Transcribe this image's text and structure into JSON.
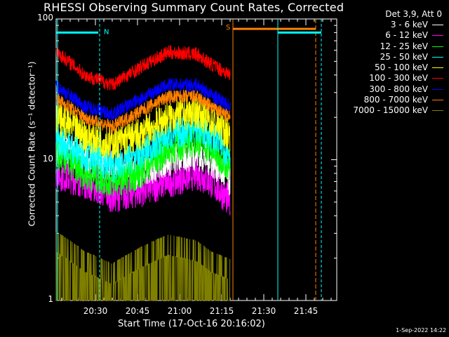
{
  "chart_data": {
    "type": "line",
    "title": "RHESSI Observing Summary Count Rates, Corrected",
    "xlabel": "Start Time (17-Oct-16 20:16:02)",
    "ylabel": "Corrected Count Rate (s⁻¹ detector⁻¹)",
    "yscale": "log",
    "ylim": [
      1,
      100
    ],
    "xlim_minutes": [
      0,
      100
    ],
    "x_ticks": [
      "20:30",
      "20:45",
      "21:00",
      "21:15",
      "21:30",
      "21:45"
    ],
    "x_tick_minutes": [
      14,
      29,
      44,
      59,
      74,
      89
    ],
    "y_ticks": [
      "1",
      "10",
      "100"
    ],
    "legend_header": "Det 3,9, Att 0",
    "series": [
      {
        "name": "3 - 6 keV",
        "color": "#ffffff",
        "x_minutes": [
          0,
          10,
          20,
          30,
          40,
          50,
          55,
          62
        ],
        "values": [
          12,
          10,
          9,
          8,
          10,
          11,
          10,
          7
        ]
      },
      {
        "name": "6 - 12 keV",
        "color": "#ff00ff",
        "x_minutes": [
          0,
          10,
          20,
          30,
          40,
          50,
          55,
          62
        ],
        "values": [
          8,
          7,
          5.5,
          6,
          7,
          8,
          7,
          5
        ]
      },
      {
        "name": "12 - 25 keV",
        "color": "#00ff00",
        "x_minutes": [
          0,
          10,
          20,
          30,
          40,
          50,
          55,
          62
        ],
        "values": [
          11,
          8,
          7,
          8,
          12,
          14,
          12,
          9
        ]
      },
      {
        "name": "25 - 50 keV",
        "color": "#00ffff",
        "x_minutes": [
          0,
          10,
          20,
          30,
          40,
          50,
          55,
          62
        ],
        "values": [
          14,
          11,
          9,
          11,
          15,
          17,
          15,
          11
        ]
      },
      {
        "name": "50 - 100 keV",
        "color": "#ffff00",
        "x_minutes": [
          0,
          10,
          20,
          30,
          40,
          50,
          55,
          62
        ],
        "values": [
          20,
          15,
          13,
          15,
          20,
          22,
          19,
          15
        ]
      },
      {
        "name": "100 - 300 keV",
        "color": "#ff0000",
        "x_minutes": [
          0,
          10,
          20,
          30,
          40,
          50,
          55,
          62
        ],
        "values": [
          58,
          40,
          34,
          45,
          58,
          56,
          48,
          40
        ]
      },
      {
        "name": "300 - 800 keV",
        "color": "#0000ff",
        "x_minutes": [
          0,
          10,
          20,
          30,
          40,
          50,
          55,
          62
        ],
        "values": [
          33,
          24,
          21,
          27,
          34,
          34,
          29,
          24
        ]
      },
      {
        "name": "800 - 7000 keV",
        "color": "#ff8000",
        "x_minutes": [
          0,
          10,
          20,
          30,
          40,
          50,
          55,
          62
        ],
        "values": [
          27,
          20,
          17,
          22,
          28,
          28,
          24,
          20
        ]
      },
      {
        "name": "7000 - 15000 keV",
        "color": "#808000",
        "x_minutes": [
          0,
          10,
          20,
          30,
          40,
          50,
          55,
          62
        ],
        "values": [
          2.2,
          1.6,
          1.3,
          1.7,
          2.1,
          1.9,
          1.6,
          1.4
        ]
      }
    ],
    "annotations": [
      {
        "label": "N",
        "color": "#00ffff"
      },
      {
        "label": "S",
        "color": "#ff8000"
      }
    ]
  },
  "timestamp": "1-Sep-2022 14:22"
}
